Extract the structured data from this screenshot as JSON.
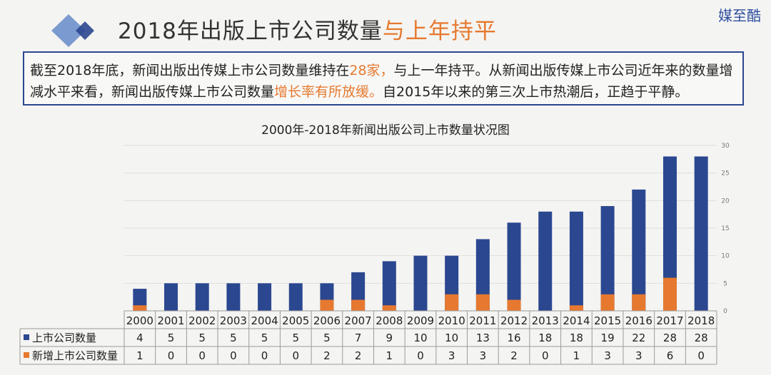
{
  "brand": "媒至酷",
  "header": {
    "title_main": "2018年出版上市公司数量",
    "title_highlight": "与上年持平",
    "accent_color": "#e6792f",
    "logo_colors": [
      "#2b4790",
      "#7b9ad0"
    ]
  },
  "description": {
    "p1": "截至2018年底，新闻出版出传媒上市公司数量维持在",
    "p1_hl": "28家，",
    "p2": "与上一年持平。从新闻出版传媒上市公司近年来的数量增减水平来看，新闻出版传媒上市公司数量",
    "p2_hl": "增长率有所放缓。",
    "p3": "自2015年以来的第三次上市热潮后，正趋于平静。"
  },
  "chart_data": {
    "type": "bar",
    "title": "2000年-2018年新闻出版公司上市数量状况图",
    "categories": [
      "2000",
      "2001",
      "2002",
      "2003",
      "2004",
      "2005",
      "2006",
      "2007",
      "2008",
      "2009",
      "2010",
      "2011",
      "2012",
      "2013",
      "2014",
      "2015",
      "2016",
      "2017",
      "2018"
    ],
    "series": [
      {
        "name": "上市公司数量",
        "color": "#2b4790",
        "values": [
          4,
          5,
          5,
          5,
          5,
          5,
          5,
          7,
          9,
          10,
          10,
          13,
          16,
          18,
          18,
          19,
          22,
          28,
          28
        ]
      },
      {
        "name": "新增上市公司数量",
        "color": "#e6792f",
        "values": [
          1,
          0,
          0,
          0,
          0,
          0,
          2,
          2,
          1,
          0,
          3,
          3,
          2,
          0,
          1,
          3,
          3,
          6,
          0
        ]
      }
    ],
    "overlay": true,
    "ylim": [
      0,
      30
    ],
    "yticks": [
      0,
      5,
      10,
      15,
      20,
      25,
      30
    ],
    "grid": true,
    "data_table": true
  }
}
